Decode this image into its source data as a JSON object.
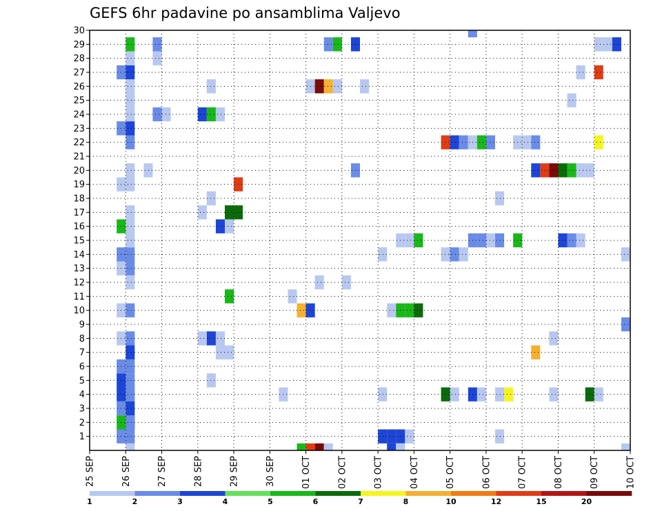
{
  "chart_data": {
    "type": "heatmap",
    "title": "GEFS 6hr padavine po ansamblima Valjevo",
    "xlabel": "",
    "ylabel": "",
    "x_tick_labels": [
      "25 SEP",
      "26 SEP",
      "27 SEP",
      "28 SEP",
      "29 SEP",
      "30 SEP",
      "01 OCT",
      "02 OCT",
      "03 OCT",
      "04 OCT",
      "05 OCT",
      "06 OCT",
      "07 OCT",
      "08 OCT",
      "09 OCT",
      "10 OCT"
    ],
    "y_tick_labels": [
      "1",
      "2",
      "3",
      "4",
      "5",
      "6",
      "7",
      "8",
      "9",
      "10",
      "11",
      "12",
      "13",
      "14",
      "15",
      "16",
      "17",
      "18",
      "19",
      "20",
      "21",
      "22",
      "23",
      "24",
      "25",
      "26",
      "27",
      "28",
      "29",
      "30"
    ],
    "x_range_days": [
      0,
      15
    ],
    "y_range": [
      0,
      30
    ],
    "time_step_days": 0.25,
    "grid": "dotted",
    "colorbar": {
      "position": "bottom",
      "levels": [
        "1",
        "2",
        "3",
        "4",
        "5",
        "6",
        "7",
        "8",
        "10",
        "12",
        "15",
        "20"
      ],
      "colors": [
        "#b8c8f0",
        "#6a8ce8",
        "#1d45d6",
        "#65e05a",
        "#19b819",
        "#0b6b0b",
        "#f5f51e",
        "#f5b030",
        "#f07c14",
        "#e03c14",
        "#b41414",
        "#7a0a0a"
      ]
    },
    "cells": [
      [
        1.0,
        0,
        1
      ],
      [
        1.0,
        4,
        1
      ],
      [
        1.0,
        2,
        3
      ],
      [
        1.0,
        10,
        2
      ],
      [
        1.0,
        6,
        2
      ],
      [
        1.0,
        5,
        2
      ],
      [
        1.0,
        4,
        2
      ],
      [
        1.0,
        3,
        3
      ],
      [
        1.0,
        2,
        2
      ],
      [
        1.0,
        1,
        2
      ],
      [
        1.0,
        12,
        1
      ],
      [
        1.0,
        13,
        2
      ],
      [
        1.0,
        8,
        2
      ],
      [
        1.0,
        7,
        3
      ],
      [
        1.0,
        14,
        2
      ],
      [
        1.0,
        15,
        1
      ],
      [
        1.0,
        16,
        1
      ],
      [
        1.0,
        17,
        1
      ],
      [
        1.0,
        19,
        1
      ],
      [
        1.0,
        20,
        1
      ],
      [
        1.0,
        22,
        2
      ],
      [
        1.0,
        23,
        3
      ],
      [
        1.0,
        24,
        1
      ],
      [
        1.0,
        25,
        1
      ],
      [
        1.0,
        26,
        1
      ],
      [
        1.0,
        27,
        3
      ],
      [
        1.0,
        28,
        1
      ],
      [
        1.0,
        29,
        5
      ],
      [
        0.75,
        2,
        5
      ],
      [
        0.75,
        1,
        2
      ],
      [
        0.75,
        3,
        2
      ],
      [
        0.75,
        4,
        3
      ],
      [
        0.75,
        5,
        3
      ],
      [
        0.75,
        6,
        2
      ],
      [
        0.75,
        8,
        1
      ],
      [
        0.75,
        10,
        1
      ],
      [
        0.75,
        13,
        1
      ],
      [
        0.75,
        14,
        2
      ],
      [
        0.75,
        16,
        5
      ],
      [
        0.75,
        19,
        1
      ],
      [
        0.75,
        23,
        2
      ],
      [
        0.75,
        27,
        2
      ],
      [
        1.5,
        20,
        1
      ],
      [
        1.75,
        24,
        2
      ],
      [
        2.0,
        24,
        1
      ],
      [
        1.75,
        29,
        2
      ],
      [
        1.75,
        28,
        1
      ],
      [
        3.0,
        8,
        1
      ],
      [
        3.0,
        17,
        1
      ],
      [
        3.0,
        24,
        3
      ],
      [
        3.25,
        24,
        5
      ],
      [
        3.25,
        8,
        3
      ],
      [
        3.25,
        5,
        1
      ],
      [
        3.25,
        18,
        1
      ],
      [
        3.25,
        26,
        1
      ],
      [
        3.5,
        8,
        1
      ],
      [
        3.5,
        7,
        1
      ],
      [
        3.5,
        16,
        3
      ],
      [
        3.5,
        24,
        1
      ],
      [
        3.75,
        7,
        1
      ],
      [
        3.75,
        16,
        1
      ],
      [
        3.75,
        17,
        6
      ],
      [
        3.75,
        11,
        5
      ],
      [
        4.0,
        17,
        6
      ],
      [
        4.0,
        19,
        10
      ],
      [
        5.25,
        4,
        1
      ],
      [
        5.5,
        11,
        1
      ],
      [
        5.75,
        10,
        8
      ],
      [
        6.0,
        10,
        3
      ],
      [
        5.75,
        0,
        5
      ],
      [
        6.0,
        0,
        10
      ],
      [
        6.25,
        0,
        12
      ],
      [
        6.5,
        0,
        1
      ],
      [
        6.0,
        26,
        1
      ],
      [
        6.25,
        26,
        12
      ],
      [
        6.5,
        26,
        8
      ],
      [
        6.75,
        26,
        1
      ],
      [
        6.25,
        12,
        1
      ],
      [
        6.5,
        29,
        2
      ],
      [
        6.75,
        29,
        5
      ],
      [
        7.0,
        12,
        1
      ],
      [
        7.25,
        20,
        2
      ],
      [
        7.25,
        29,
        3
      ],
      [
        7.5,
        26,
        1
      ],
      [
        8.0,
        14,
        1
      ],
      [
        8.0,
        4,
        1
      ],
      [
        8.0,
        1,
        3
      ],
      [
        8.25,
        1,
        3
      ],
      [
        8.5,
        1,
        3
      ],
      [
        8.25,
        0,
        3
      ],
      [
        8.5,
        0,
        1
      ],
      [
        8.25,
        10,
        1
      ],
      [
        8.5,
        10,
        5
      ],
      [
        8.75,
        10,
        5
      ],
      [
        9.0,
        10,
        6
      ],
      [
        8.5,
        15,
        1
      ],
      [
        8.75,
        15,
        1
      ],
      [
        9.0,
        15,
        5
      ],
      [
        8.75,
        1,
        1
      ],
      [
        9.75,
        14,
        1
      ],
      [
        10.0,
        14,
        2
      ],
      [
        10.25,
        14,
        1
      ],
      [
        9.75,
        22,
        10
      ],
      [
        10.0,
        22,
        3
      ],
      [
        10.25,
        22,
        2
      ],
      [
        10.5,
        22,
        1
      ],
      [
        10.75,
        22,
        5
      ],
      [
        11.0,
        22,
        2
      ],
      [
        9.75,
        4,
        6
      ],
      [
        10.0,
        4,
        1
      ],
      [
        10.5,
        4,
        3
      ],
      [
        10.75,
        4,
        1
      ],
      [
        11.25,
        4,
        1
      ],
      [
        11.5,
        4,
        7
      ],
      [
        10.5,
        15,
        2
      ],
      [
        10.75,
        15,
        2
      ],
      [
        11.0,
        15,
        1
      ],
      [
        11.25,
        15,
        2
      ],
      [
        11.25,
        1,
        1
      ],
      [
        11.25,
        18,
        1
      ],
      [
        10.5,
        30,
        2
      ],
      [
        11.75,
        15,
        5
      ],
      [
        11.75,
        22,
        1
      ],
      [
        12.0,
        22,
        1
      ],
      [
        12.25,
        22,
        2
      ],
      [
        12.25,
        20,
        3
      ],
      [
        12.5,
        20,
        10
      ],
      [
        12.75,
        20,
        12
      ],
      [
        13.0,
        20,
        6
      ],
      [
        13.25,
        20,
        5
      ],
      [
        13.5,
        20,
        1
      ],
      [
        13.75,
        20,
        1
      ],
      [
        12.25,
        7,
        8
      ],
      [
        12.75,
        4,
        1
      ],
      [
        12.75,
        8,
        1
      ],
      [
        13.0,
        15,
        3
      ],
      [
        13.25,
        15,
        2
      ],
      [
        13.5,
        15,
        1
      ],
      [
        13.25,
        25,
        1
      ],
      [
        13.5,
        27,
        1
      ],
      [
        13.75,
        4,
        6
      ],
      [
        14.0,
        4,
        1
      ],
      [
        14.0,
        29,
        1
      ],
      [
        14.25,
        29,
        1
      ],
      [
        14.5,
        29,
        3
      ],
      [
        14.0,
        27,
        10
      ],
      [
        14.0,
        22,
        7
      ],
      [
        14.75,
        14,
        1
      ],
      [
        14.75,
        9,
        2
      ],
      [
        14.75,
        0,
        1
      ]
    ]
  }
}
